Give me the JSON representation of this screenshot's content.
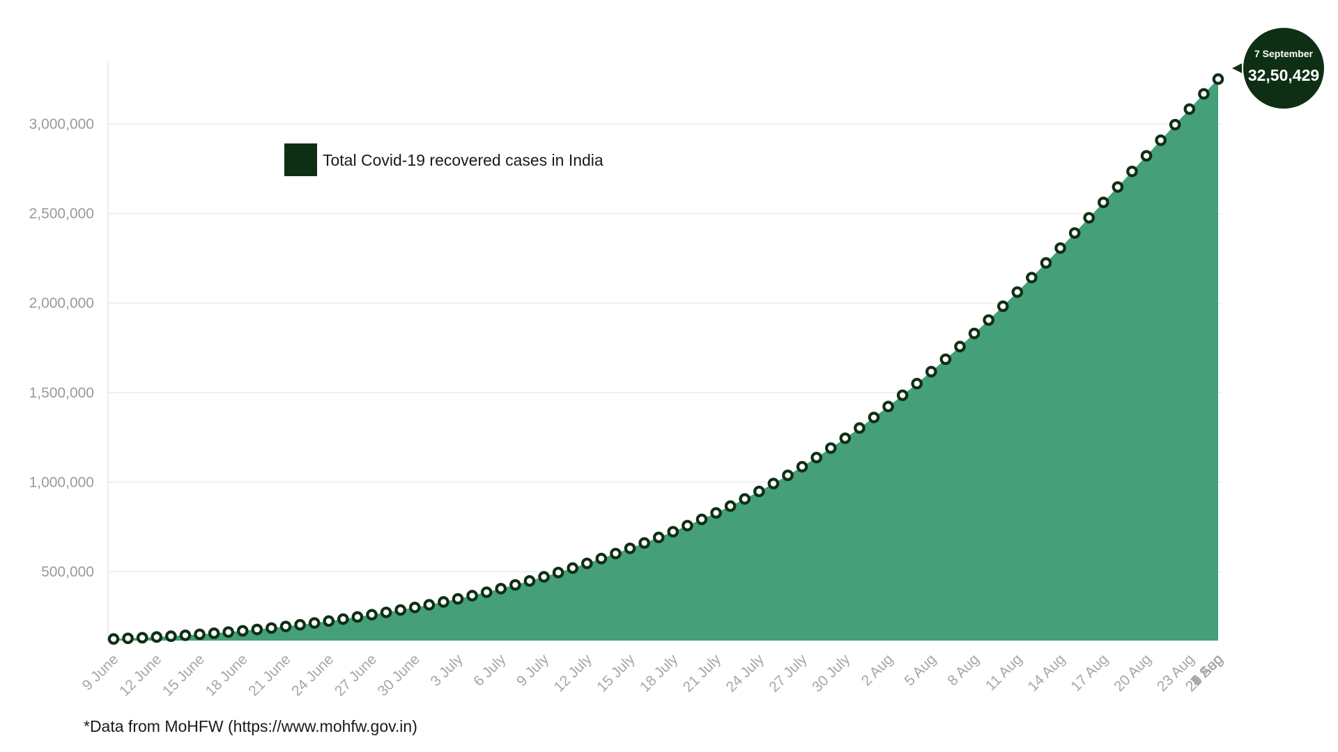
{
  "chart_data": {
    "type": "area",
    "x_start": "9 June",
    "x_end": "7 Sep",
    "x_tick_labels": [
      "9 June",
      "12 June",
      "15 June",
      "18 June",
      "21 June",
      "24 June",
      "27 June",
      "30 June",
      "3 July",
      "6 July",
      "9 July",
      "12 July",
      "15 July",
      "18 July",
      "21 July",
      "24 July",
      "27 July",
      "30 July",
      "2 Aug",
      "5 Aug",
      "8 Aug",
      "11 Aug",
      "14 Aug",
      "17 Aug",
      "20 Aug",
      "23 Aug",
      "26 Aug",
      "29 Aug",
      "1 Sep",
      "4 Sep",
      "7 Sep"
    ],
    "y_tick_labels": [
      "500,000",
      "1,000,000",
      "1,500,000",
      "2,000,000",
      "2,500,000",
      "3,000,000"
    ],
    "y_ticks": [
      500000,
      1000000,
      1500000,
      2000000,
      2500000,
      3000000
    ],
    "ylim": [
      115000,
      3350000
    ],
    "series": [
      {
        "name": "Total Covid-19 recovered cases in India",
        "color": "#459f78",
        "marker_color": "#0f2f14",
        "values": [
          124000,
          127500,
          131000,
          135000,
          139500,
          144500,
          150000,
          156000,
          162500,
          169500,
          177000,
          185000,
          194000,
          203500,
          213500,
          224000,
          235000,
          247000,
          259500,
          272500,
          286000,
          300000,
          315000,
          331000,
          348000,
          366000,
          385000,
          405000,
          426000,
          448000,
          471000,
          495000,
          520000,
          546000,
          573000,
          601000,
          630000,
          660000,
          691000,
          723000,
          757000,
          792000,
          828000,
          866000,
          906000,
          948000,
          992000,
          1038000,
          1086000,
          1137000,
          1190000,
          1245000,
          1302000,
          1361000,
          1422000,
          1485000,
          1550000,
          1617000,
          1686000,
          1757000,
          1830000,
          1905000,
          1982000,
          2061000,
          2142000,
          2224000,
          2307000,
          2391000,
          2476000,
          2562000,
          2648000,
          2735000,
          2822000,
          2909000,
          2996000,
          3083000,
          3168000,
          3250429
        ]
      }
    ],
    "grid": true,
    "legend_position": "top-left"
  },
  "callout": {
    "date": "7 September",
    "value": "32,50,429"
  },
  "footnote": "*Data from MoHFW (https://www.mohfw.gov.in)"
}
